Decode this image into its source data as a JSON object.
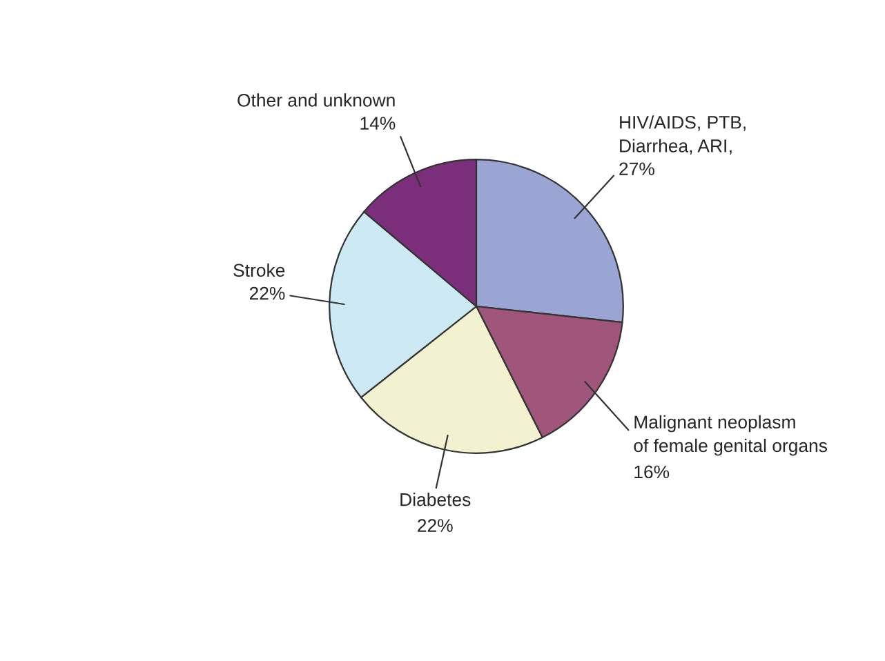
{
  "chart_data": {
    "type": "pie",
    "categories": [
      "HIV/AIDS, PTB,\nDiarrhea, ARI",
      "Malignant neoplasm\nof female genital organs",
      "Diabetes",
      "Stroke",
      "Other and unknown"
    ],
    "values": [
      27,
      16,
      22,
      22,
      14
    ],
    "value_labels": [
      "27%",
      "16%",
      "22%",
      "22%",
      "14%"
    ],
    "annotations": [
      ","
    ],
    "colors": [
      "#9aa5d3",
      "#a0557a",
      "#f3f2d0",
      "#cde9f4",
      "#7b2f7b"
    ]
  }
}
